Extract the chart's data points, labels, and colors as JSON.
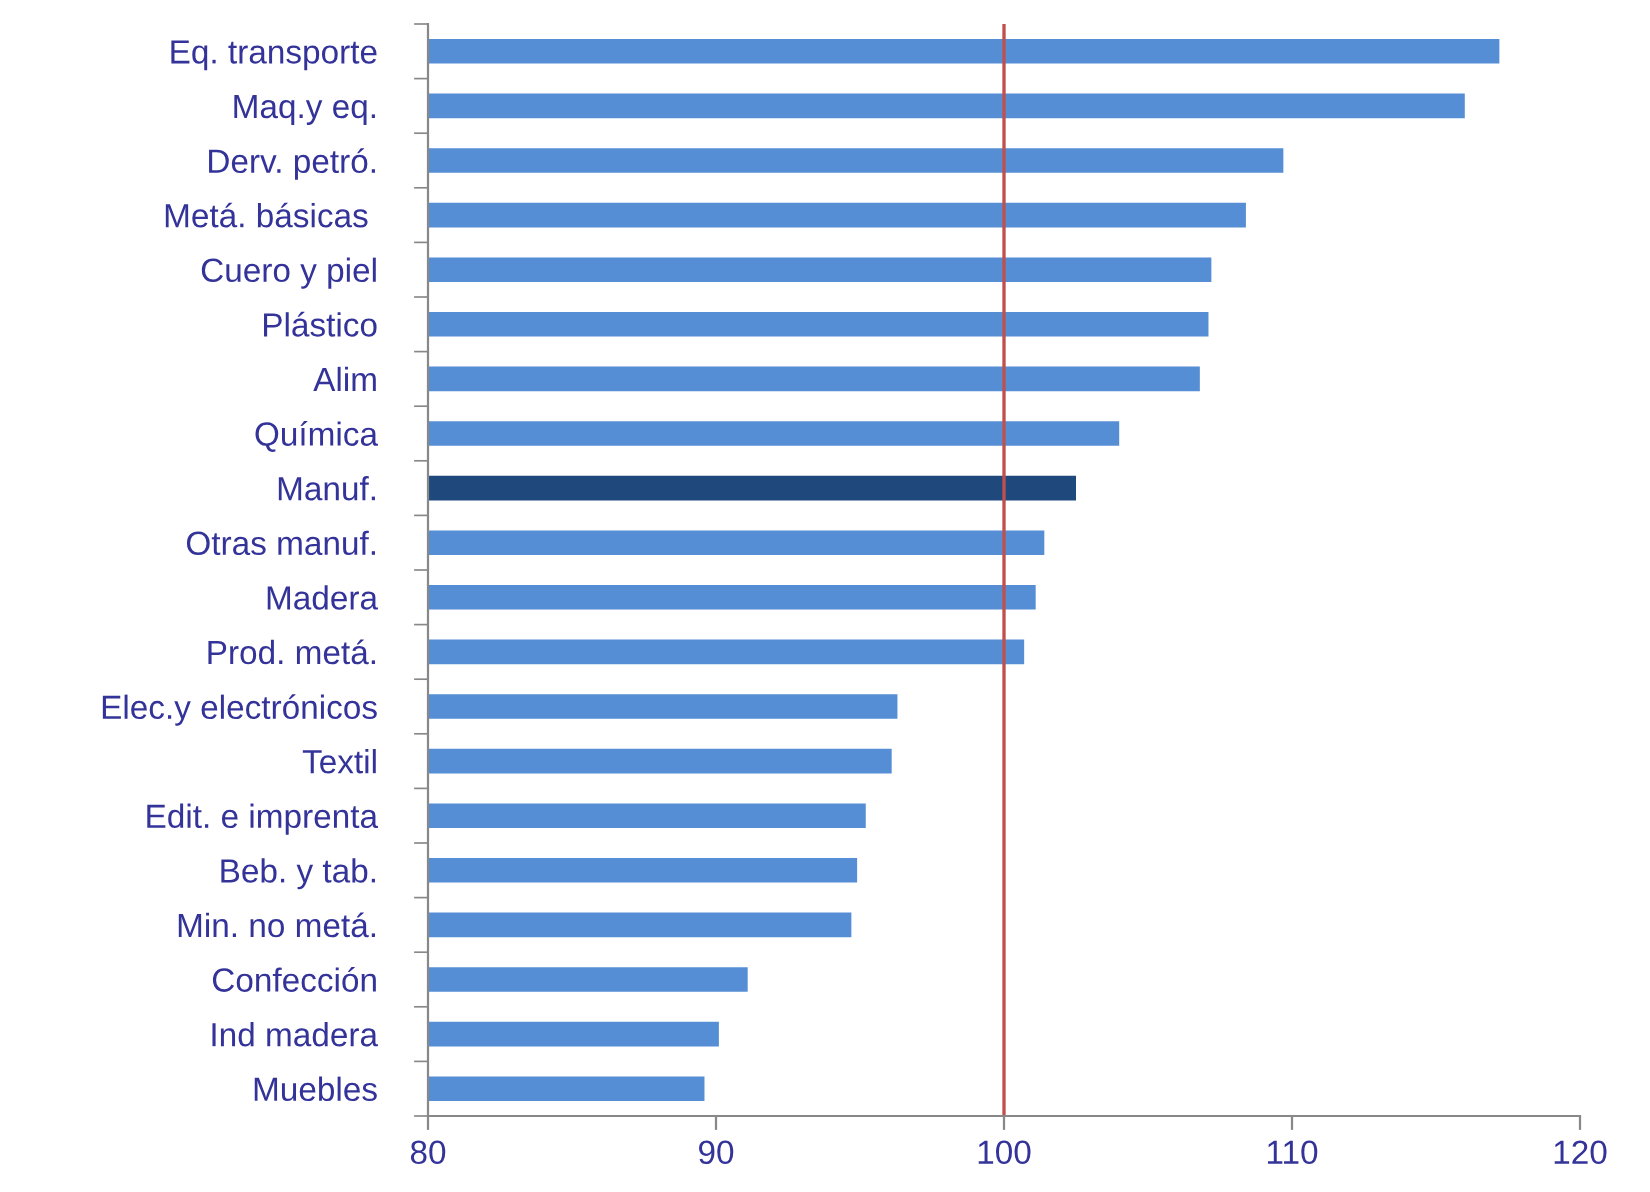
{
  "chart_data": {
    "type": "bar",
    "orientation": "horizontal",
    "categories": [
      "Eq. transporte",
      "Maq.y eq.",
      "Derv. petró.",
      "Metá. básicas ",
      "Cuero y piel",
      "Plástico",
      "Alim",
      "Química",
      "Manuf.",
      "Otras manuf.",
      "Madera",
      "Prod. metá.",
      "Elec.y electrónicos",
      "Textil",
      "Edit. e imprenta",
      "Beb. y tab.",
      "Min. no metá.",
      "Confección",
      "Ind madera",
      "Muebles"
    ],
    "values": [
      117.2,
      116.0,
      109.7,
      108.4,
      107.2,
      107.1,
      106.8,
      104.0,
      102.5,
      101.4,
      101.1,
      100.7,
      96.3,
      96.1,
      95.2,
      94.9,
      94.7,
      91.1,
      90.1,
      89.6
    ],
    "colors": [
      "#558ed5",
      "#558ed5",
      "#558ed5",
      "#558ed5",
      "#558ed5",
      "#558ed5",
      "#558ed5",
      "#558ed5",
      "#1f497d",
      "#558ed5",
      "#558ed5",
      "#558ed5",
      "#558ed5",
      "#558ed5",
      "#558ed5",
      "#558ed5",
      "#558ed5",
      "#558ed5",
      "#558ed5",
      "#558ed5"
    ],
    "xlim": [
      80,
      120
    ],
    "xticks": [
      80,
      90,
      100,
      110,
      120
    ],
    "ref_lines": [
      {
        "axis": "x",
        "value": 100,
        "color": "#c0504d"
      }
    ],
    "grid": false,
    "legend": false
  }
}
